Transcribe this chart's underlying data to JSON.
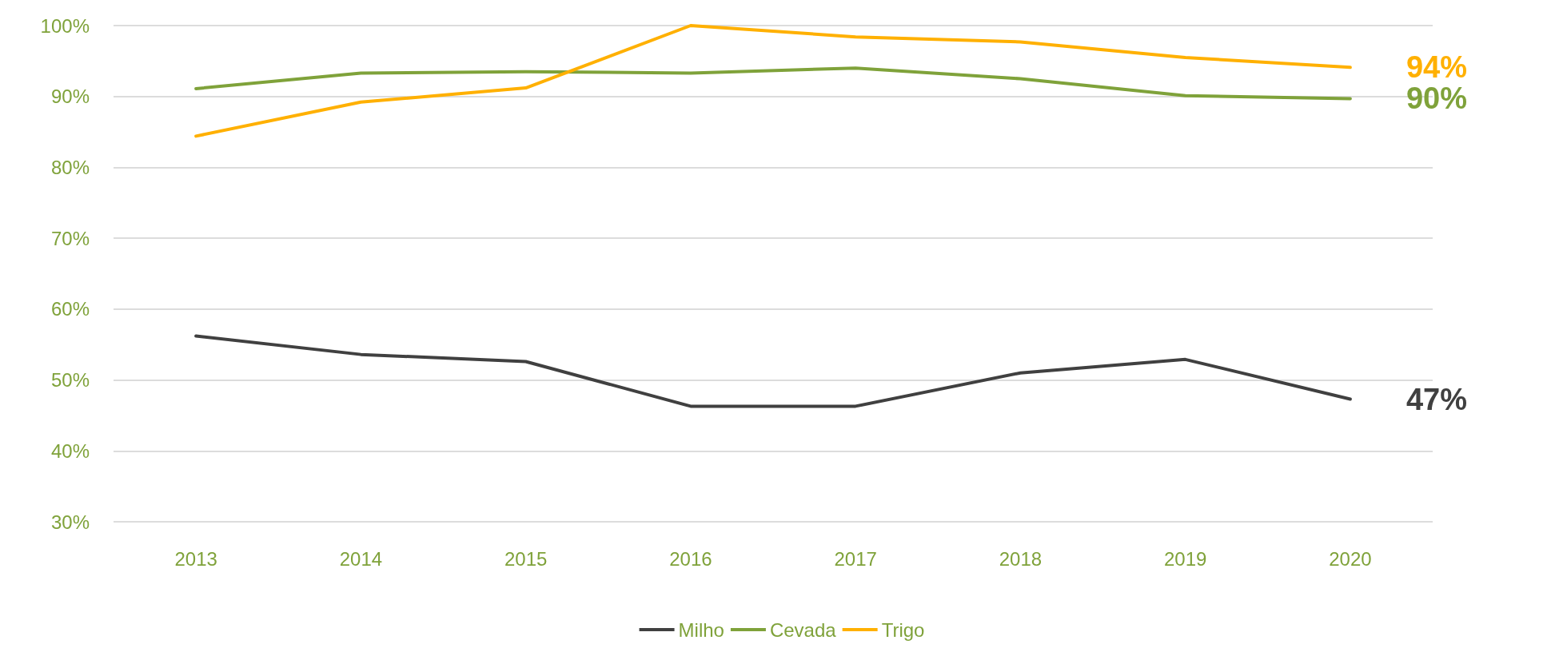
{
  "chart_data": {
    "type": "line",
    "categories": [
      "2013",
      "2014",
      "2015",
      "2016",
      "2017",
      "2018",
      "2019",
      "2020"
    ],
    "series": [
      {
        "name": "Milho",
        "color": "#404040",
        "values": [
          56.2,
          53.6,
          52.6,
          46.3,
          46.3,
          51.0,
          52.9,
          47.3
        ],
        "value_labels": [
          null,
          null,
          null,
          null,
          null,
          null,
          null,
          "47%"
        ]
      },
      {
        "name": "Cevada",
        "color": "#7fa23a",
        "values": [
          91.1,
          93.3,
          93.5,
          93.3,
          94.0,
          92.5,
          90.1,
          89.7
        ],
        "value_labels": [
          null,
          null,
          null,
          null,
          null,
          null,
          null,
          "90%"
        ]
      },
      {
        "name": "Trigo",
        "color": "#ffb000",
        "values": [
          84.4,
          89.2,
          91.2,
          100,
          98.4,
          97.7,
          95.5,
          94.1
        ],
        "value_labels": [
          null,
          null,
          null,
          null,
          null,
          null,
          null,
          "94%"
        ]
      }
    ],
    "ylim": [
      30,
      100
    ],
    "yticks": [
      {
        "value": 30,
        "label": "30%"
      },
      {
        "value": 40,
        "label": "40%"
      },
      {
        "value": 50,
        "label": "50%"
      },
      {
        "value": 60,
        "label": "60%"
      },
      {
        "value": 70,
        "label": "70%"
      },
      {
        "value": 80,
        "label": "80%"
      },
      {
        "value": 90,
        "label": "90%"
      },
      {
        "value": 100,
        "label": "100%"
      }
    ],
    "grid": "y",
    "legend": "bottom",
    "marker": "none",
    "line_style": "solid"
  }
}
